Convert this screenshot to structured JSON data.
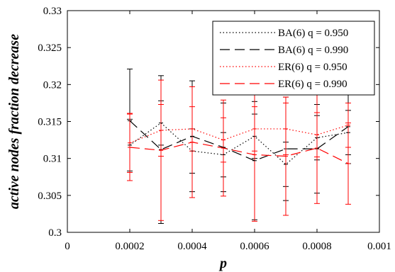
{
  "chart_data": {
    "type": "line",
    "xlabel": "p",
    "ylabel": "active nodes fraction decrease",
    "xlim": [
      0,
      0.001
    ],
    "ylim": [
      0.3,
      0.33
    ],
    "xticks": [
      "0",
      "0.0002",
      "0.0004",
      "0.0006",
      "0.0008",
      "0.001"
    ],
    "yticks": [
      "0.3",
      "0.305",
      "0.31",
      "0.315",
      "0.32",
      "0.325",
      "0.33"
    ],
    "grid": false,
    "legend_position": "top-right",
    "x": [
      0.0002,
      0.0003,
      0.0004,
      0.0005,
      0.0006,
      0.0007,
      0.0008,
      0.0009
    ],
    "series": [
      {
        "name": "BA(6) q = 0.950",
        "color": "#000000",
        "dash": "dotted",
        "values": [
          0.3118,
          0.3148,
          0.311,
          0.3105,
          0.313,
          0.3092,
          0.3128,
          0.3135
        ],
        "err": [
          0.0035,
          0.003,
          0.003,
          0.003,
          0.003,
          0.003,
          0.003,
          0.003
        ]
      },
      {
        "name": "BA(6) q = 0.990",
        "color": "#000000",
        "dash": "dashed",
        "values": [
          0.3151,
          0.3112,
          0.313,
          0.3115,
          0.3097,
          0.3113,
          0.3113,
          0.3143
        ],
        "err": [
          0.007,
          0.01,
          0.0075,
          0.006,
          0.008,
          0.007,
          0.006,
          0.005
        ]
      },
      {
        "name": "ER(6) q = 0.950",
        "color": "#ff0000",
        "dash": "dotted",
        "values": [
          0.3121,
          0.3138,
          0.314,
          0.3125,
          0.314,
          0.314,
          0.3132,
          0.3145
        ],
        "err": [
          0.004,
          0.0035,
          0.003,
          0.003,
          0.003,
          0.0035,
          0.003,
          0.003
        ]
      },
      {
        "name": "ER(6) q = 0.990",
        "color": "#ff0000",
        "dash": "dashed",
        "values": [
          0.3115,
          0.3111,
          0.3122,
          0.3114,
          0.3105,
          0.3103,
          0.3114,
          0.3093
        ],
        "err": [
          0.0045,
          0.0095,
          0.0075,
          0.0065,
          0.009,
          0.008,
          0.0075,
          0.0055
        ]
      }
    ]
  }
}
